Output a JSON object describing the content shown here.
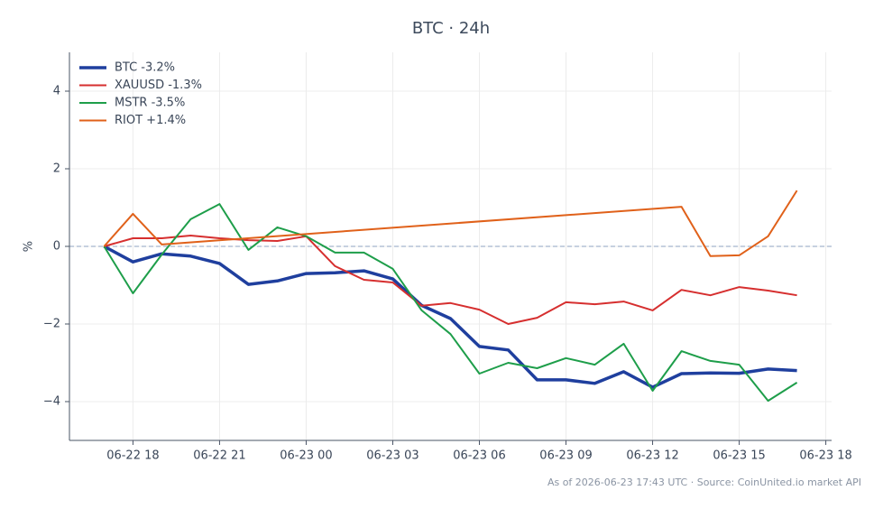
{
  "chart_data": {
    "type": "line",
    "title": "BTC · 24h",
    "ylabel": "%",
    "footnote": "As of 2026-06-23 17:43 UTC · Source: CoinUnited.io market API",
    "x": [
      "06-22 17",
      "06-22 18",
      "06-22 19",
      "06-22 20",
      "06-22 21",
      "06-22 22",
      "06-22 23",
      "06-23 00",
      "06-23 01",
      "06-23 02",
      "06-23 03",
      "06-23 04",
      "06-23 05",
      "06-23 06",
      "06-23 07",
      "06-23 08",
      "06-23 09",
      "06-23 10",
      "06-23 11",
      "06-23 12",
      "06-23 13",
      "06-23 14",
      "06-23 15",
      "06-23 16",
      "06-23 17"
    ],
    "series": [
      {
        "name": "BTC -3.2%",
        "color": "#1f3f9e",
        "values": [
          0,
          -0.4,
          -0.19,
          -0.25,
          -0.44,
          -0.98,
          -0.89,
          -0.7,
          -0.68,
          -0.63,
          -0.84,
          -1.52,
          -1.86,
          -2.58,
          -2.67,
          -3.44,
          -3.44,
          -3.53,
          -3.23,
          -3.63,
          -3.28,
          -3.26,
          -3.27,
          -3.16,
          -3.2
        ]
      },
      {
        "name": "XAUUSD -1.3%",
        "color": "#d62f2f",
        "values": [
          0,
          0.21,
          0.21,
          0.28,
          0.21,
          0.16,
          0.14,
          0.26,
          -0.51,
          -0.86,
          -0.93,
          -1.53,
          -1.46,
          -1.63,
          -2.0,
          -1.84,
          -1.44,
          -1.49,
          -1.42,
          -1.65,
          -1.12,
          -1.26,
          -1.05,
          -1.14,
          -1.26
        ]
      },
      {
        "name": "MSTR -3.5%",
        "color": "#1e9e4a",
        "values": [
          0,
          -1.21,
          -0.21,
          0.7,
          1.09,
          -0.09,
          0.49,
          0.26,
          -0.16,
          -0.16,
          -0.58,
          -1.65,
          -2.26,
          -3.28,
          -3.0,
          -3.14,
          -2.88,
          -3.05,
          -2.51,
          -3.72,
          -2.7,
          -2.95,
          -3.05,
          -3.98,
          -3.51
        ]
      },
      {
        "name": "RIOT +1.4%",
        "color": "#e0611a",
        "x": [
          "06-22 17",
          "06-22 18",
          "06-22 19",
          "06-23 13",
          "06-23 14",
          "06-23 15",
          "06-23 16",
          "06-23 17"
        ],
        "values": [
          0,
          0.84,
          0.05,
          1.02,
          -0.25,
          -0.23,
          0.26,
          1.44
        ]
      }
    ],
    "hline": 0,
    "xlim": [
      "06-22 15:48",
      "06-23 18:12"
    ],
    "xticks": [
      "06-22 18",
      "06-22 21",
      "06-23 00",
      "06-23 03",
      "06-23 06",
      "06-23 09",
      "06-23 12",
      "06-23 15",
      "06-23 18"
    ],
    "ylim": [
      -5,
      5
    ],
    "yticks": [
      {
        "value": -4,
        "label": "−4"
      },
      {
        "value": -2,
        "label": "−2"
      },
      0,
      2,
      4
    ],
    "grid": true,
    "legend": "upper left"
  }
}
